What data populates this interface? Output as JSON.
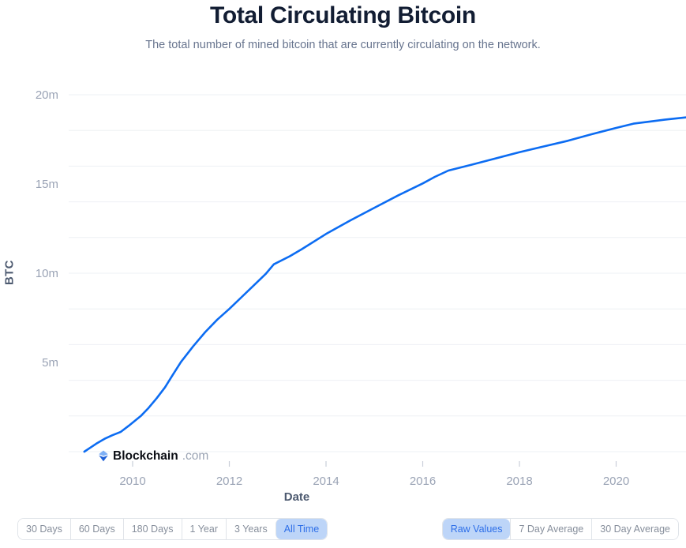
{
  "header": {
    "title": "Total Circulating Bitcoin",
    "subtitle": "The total number of mined bitcoin that are currently circulating on the network."
  },
  "watermark": {
    "brand": "Blockchain",
    "suffix": ".com"
  },
  "chart_data": {
    "type": "line",
    "title": "Total Circulating Bitcoin",
    "xlabel": "Date",
    "ylabel": "BTC",
    "x_range": [
      2008.85,
      2021.45
    ],
    "y_range": [
      0,
      21.1
    ],
    "grid": "horizontal-only",
    "legend": "none",
    "line_color": "#0c6cf2",
    "xticks": [
      {
        "value": 2010,
        "label": "2010"
      },
      {
        "value": 2012,
        "label": "2012"
      },
      {
        "value": 2014,
        "label": "2014"
      },
      {
        "value": 2016,
        "label": "2016"
      },
      {
        "value": 2018,
        "label": "2018"
      },
      {
        "value": 2020,
        "label": "2020"
      }
    ],
    "yticks": [
      {
        "value": 5,
        "label": "5m"
      },
      {
        "value": 10,
        "label": "10m"
      },
      {
        "value": 15,
        "label": "15m"
      },
      {
        "value": 20,
        "label": "20m"
      }
    ],
    "gridlines_btc_millions": [
      0,
      2,
      4,
      6,
      8,
      10,
      12,
      14,
      16,
      18,
      20
    ],
    "series": [
      {
        "name": "Total Circulating Bitcoin",
        "unit": "million BTC",
        "points_year_millionBTC": [
          [
            2009.0,
            0
          ],
          [
            2009.1,
            0.18
          ],
          [
            2009.25,
            0.45
          ],
          [
            2009.42,
            0.72
          ],
          [
            2009.58,
            0.92
          ],
          [
            2009.75,
            1.1
          ],
          [
            2009.92,
            1.45
          ],
          [
            2010.0,
            1.63
          ],
          [
            2010.17,
            2.0
          ],
          [
            2010.33,
            2.45
          ],
          [
            2010.5,
            3.0
          ],
          [
            2010.67,
            3.6
          ],
          [
            2010.83,
            4.3
          ],
          [
            2011.0,
            5.03
          ],
          [
            2011.25,
            5.9
          ],
          [
            2011.5,
            6.7
          ],
          [
            2011.75,
            7.4
          ],
          [
            2012.0,
            8.0
          ],
          [
            2012.25,
            8.65
          ],
          [
            2012.5,
            9.3
          ],
          [
            2012.75,
            9.95
          ],
          [
            2012.92,
            10.5
          ],
          [
            2013.25,
            10.95
          ],
          [
            2013.5,
            11.35
          ],
          [
            2014.0,
            12.2
          ],
          [
            2014.5,
            12.95
          ],
          [
            2015.0,
            13.67
          ],
          [
            2015.5,
            14.37
          ],
          [
            2016.0,
            15.03
          ],
          [
            2016.25,
            15.4
          ],
          [
            2016.53,
            15.75
          ],
          [
            2017.0,
            16.07
          ],
          [
            2017.5,
            16.43
          ],
          [
            2018.0,
            16.78
          ],
          [
            2018.5,
            17.1
          ],
          [
            2019.0,
            17.42
          ],
          [
            2019.5,
            17.79
          ],
          [
            2020.0,
            18.14
          ],
          [
            2020.36,
            18.38
          ],
          [
            2020.7,
            18.5
          ],
          [
            2021.0,
            18.6
          ],
          [
            2021.44,
            18.73
          ]
        ]
      }
    ],
    "annotations": {
      "halvings_visible_as_slope_breaks": [
        [
          2012.92,
          10.5
        ],
        [
          2016.53,
          15.75
        ],
        [
          2020.36,
          18.38
        ]
      ]
    }
  },
  "controls": {
    "time_ranges": [
      {
        "label": "30 Days",
        "selected": false
      },
      {
        "label": "60 Days",
        "selected": false
      },
      {
        "label": "180 Days",
        "selected": false
      },
      {
        "label": "1 Year",
        "selected": false
      },
      {
        "label": "3 Years",
        "selected": false
      },
      {
        "label": "All Time",
        "selected": true
      }
    ],
    "value_modes": [
      {
        "label": "Raw Values",
        "selected": true
      },
      {
        "label": "7 Day Average",
        "selected": false
      },
      {
        "label": "30 Day Average",
        "selected": false
      }
    ]
  },
  "colors": {
    "line": "#0c6cf2",
    "title_text": "#121d33",
    "subtitle_text": "#67748e",
    "tick_text": "#9aa3b5",
    "axis_title_text": "#4d5a70",
    "gridline": "#eef0f4",
    "tick_mark": "#c9ced8",
    "selected_button_bg": "#bdd5f8",
    "selected_button_text": "#2e6fe8",
    "button_text": "#878f9c",
    "button_border": "#e0e4e9"
  }
}
